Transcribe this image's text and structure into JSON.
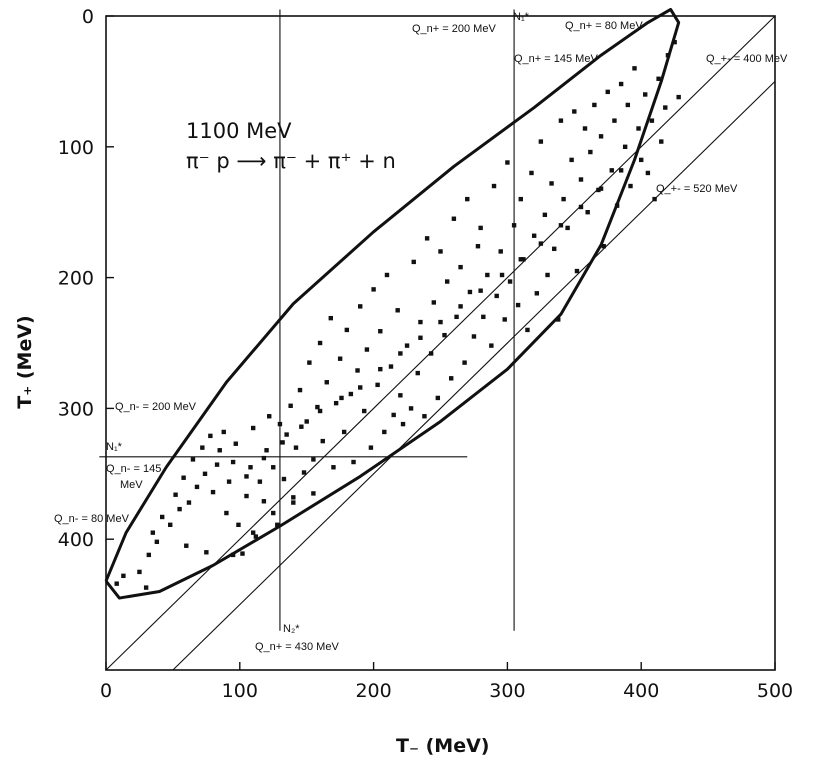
{
  "chart_data": {
    "type": "scatter",
    "title": "",
    "xlabel": "T₋ (MeV)",
    "ylabel": "T₊ (MeV)",
    "xlim": [
      0,
      500
    ],
    "ylim": [
      0,
      500
    ],
    "y_axis_inverted": true,
    "x_ticks": [
      "0",
      "100",
      "200",
      "300",
      "400",
      "500"
    ],
    "y_ticks": [
      "0",
      "100",
      "200",
      "300",
      "400"
    ],
    "inset_text": {
      "energy": "1100 MeV",
      "reaction": "π⁻ p ⟶ π⁻ + π⁺ + n"
    },
    "annotations": [
      {
        "id": "top_a",
        "text": "Q_n+ = 200 MeV"
      },
      {
        "id": "top_b",
        "text": "N₁*"
      },
      {
        "id": "top_c",
        "text": "Q_n+ = 80 MeV"
      },
      {
        "id": "top_d",
        "text": "Q_n+ = 145 MeV"
      },
      {
        "id": "diag_a",
        "text": "Q_+- = 400 MeV"
      },
      {
        "id": "diag_b",
        "text": "Q_+- = 520 MeV"
      },
      {
        "id": "left_a",
        "text": "Q_n- = 200 MeV"
      },
      {
        "id": "left_b",
        "text": "N₁*"
      },
      {
        "id": "left_c",
        "text": "Q_n- = 145"
      },
      {
        "id": "left_d",
        "text": "MeV"
      },
      {
        "id": "left_e",
        "text": "Q_n- = 80 MeV"
      },
      {
        "id": "bot_a",
        "text": "N₂*"
      },
      {
        "id": "bot_b",
        "text": "Q_n+ = 430 MeV"
      }
    ],
    "lines": {
      "diagonal_offsets": [
        0,
        50
      ],
      "vertical_T_minus": [
        130,
        305
      ],
      "horizontal_T_plus": [
        337
      ],
      "ellipse_boundary": [
        [
          0,
          432
        ],
        [
          10,
          445
        ],
        [
          40,
          440
        ],
        [
          80,
          420
        ],
        [
          130,
          390
        ],
        [
          190,
          352
        ],
        [
          250,
          310
        ],
        [
          300,
          270
        ],
        [
          340,
          228
        ],
        [
          370,
          175
        ],
        [
          395,
          110
        ],
        [
          415,
          50
        ],
        [
          428,
          5
        ],
        [
          422,
          -5
        ],
        [
          405,
          5
        ],
        [
          370,
          30
        ],
        [
          320,
          70
        ],
        [
          260,
          115
        ],
        [
          200,
          165
        ],
        [
          140,
          220
        ],
        [
          90,
          280
        ],
        [
          45,
          345
        ],
        [
          15,
          395
        ],
        [
          0,
          432
        ]
      ]
    },
    "series": [
      {
        "points": [
          [
            8,
            434
          ],
          [
            13,
            428
          ],
          [
            25,
            425
          ],
          [
            30,
            437
          ],
          [
            32,
            412
          ],
          [
            35,
            395
          ],
          [
            38,
            402
          ],
          [
            42,
            383
          ],
          [
            48,
            389
          ],
          [
            52,
            366
          ],
          [
            55,
            377
          ],
          [
            58,
            353
          ],
          [
            62,
            372
          ],
          [
            65,
            339
          ],
          [
            68,
            360
          ],
          [
            72,
            330
          ],
          [
            74,
            350
          ],
          [
            78,
            321
          ],
          [
            80,
            364
          ],
          [
            83,
            343
          ],
          [
            85,
            332
          ],
          [
            88,
            318
          ],
          [
            90,
            380
          ],
          [
            92,
            356
          ],
          [
            95,
            341
          ],
          [
            97,
            327
          ],
          [
            99,
            389
          ],
          [
            102,
            411
          ],
          [
            105,
            367
          ],
          [
            108,
            345
          ],
          [
            110,
            315
          ],
          [
            112,
            398
          ],
          [
            115,
            356
          ],
          [
            118,
            371
          ],
          [
            120,
            332
          ],
          [
            122,
            306
          ],
          [
            125,
            345
          ],
          [
            128,
            389
          ],
          [
            130,
            312
          ],
          [
            133,
            354
          ],
          [
            135,
            320
          ],
          [
            138,
            298
          ],
          [
            140,
            368
          ],
          [
            142,
            330
          ],
          [
            145,
            286
          ],
          [
            148,
            349
          ],
          [
            150,
            310
          ],
          [
            152,
            265
          ],
          [
            155,
            339
          ],
          [
            158,
            299
          ],
          [
            160,
            250
          ],
          [
            162,
            325
          ],
          [
            165,
            280
          ],
          [
            168,
            231
          ],
          [
            170,
            345
          ],
          [
            172,
            296
          ],
          [
            175,
            262
          ],
          [
            178,
            318
          ],
          [
            180,
            240
          ],
          [
            183,
            289
          ],
          [
            185,
            341
          ],
          [
            188,
            271
          ],
          [
            190,
            222
          ],
          [
            193,
            302
          ],
          [
            195,
            255
          ],
          [
            198,
            330
          ],
          [
            200,
            209
          ],
          [
            203,
            282
          ],
          [
            205,
            241
          ],
          [
            208,
            318
          ],
          [
            210,
            198
          ],
          [
            213,
            268
          ],
          [
            215,
            305
          ],
          [
            218,
            225
          ],
          [
            220,
            290
          ],
          [
            222,
            312
          ],
          [
            225,
            252
          ],
          [
            228,
            300
          ],
          [
            230,
            188
          ],
          [
            233,
            273
          ],
          [
            235,
            234
          ],
          [
            238,
            306
          ],
          [
            240,
            170
          ],
          [
            243,
            258
          ],
          [
            245,
            219
          ],
          [
            248,
            292
          ],
          [
            250,
            180
          ],
          [
            253,
            244
          ],
          [
            255,
            203
          ],
          [
            258,
            277
          ],
          [
            260,
            155
          ],
          [
            262,
            230
          ],
          [
            265,
            192
          ],
          [
            268,
            265
          ],
          [
            270,
            140
          ],
          [
            272,
            211
          ],
          [
            275,
            245
          ],
          [
            278,
            176
          ],
          [
            280,
            162
          ],
          [
            282,
            230
          ],
          [
            285,
            198
          ],
          [
            288,
            252
          ],
          [
            290,
            130
          ],
          [
            292,
            214
          ],
          [
            295,
            180
          ],
          [
            298,
            232
          ],
          [
            300,
            112
          ],
          [
            302,
            203
          ],
          [
            305,
            160
          ],
          [
            308,
            221
          ],
          [
            310,
            140
          ],
          [
            312,
            186
          ],
          [
            315,
            240
          ],
          [
            318,
            120
          ],
          [
            320,
            168
          ],
          [
            322,
            212
          ],
          [
            325,
            96
          ],
          [
            328,
            152
          ],
          [
            330,
            198
          ],
          [
            333,
            128
          ],
          [
            335,
            178
          ],
          [
            338,
            232
          ],
          [
            340,
            80
          ],
          [
            342,
            140
          ],
          [
            345,
            162
          ],
          [
            348,
            110
          ],
          [
            350,
            73
          ],
          [
            352,
            195
          ],
          [
            355,
            125
          ],
          [
            358,
            86
          ],
          [
            360,
            150
          ],
          [
            362,
            104
          ],
          [
            365,
            68
          ],
          [
            368,
            133
          ],
          [
            370,
            92
          ],
          [
            372,
            176
          ],
          [
            375,
            58
          ],
          [
            378,
            118
          ],
          [
            380,
            80
          ],
          [
            382,
            145
          ],
          [
            385,
            52
          ],
          [
            388,
            100
          ],
          [
            390,
            68
          ],
          [
            392,
            130
          ],
          [
            395,
            40
          ],
          [
            398,
            86
          ],
          [
            400,
            110
          ],
          [
            403,
            60
          ],
          [
            405,
            120
          ],
          [
            408,
            80
          ],
          [
            410,
            140
          ],
          [
            413,
            48
          ],
          [
            415,
            96
          ],
          [
            418,
            70
          ],
          [
            420,
            30
          ],
          [
            425,
            20
          ],
          [
            428,
            62
          ],
          [
            60,
            405
          ],
          [
            75,
            410
          ],
          [
            95,
            412
          ],
          [
            110,
            395
          ],
          [
            125,
            380
          ],
          [
            140,
            372
          ],
          [
            155,
            365
          ],
          [
            105,
            352
          ],
          [
            118,
            338
          ],
          [
            132,
            326
          ],
          [
            146,
            314
          ],
          [
            160,
            302
          ],
          [
            176,
            292
          ],
          [
            190,
            284
          ],
          [
            205,
            270
          ],
          [
            220,
            258
          ],
          [
            235,
            246
          ],
          [
            250,
            234
          ],
          [
            265,
            222
          ],
          [
            280,
            210
          ],
          [
            296,
            198
          ],
          [
            310,
            186
          ],
          [
            325,
            174
          ],
          [
            340,
            160
          ],
          [
            355,
            146
          ],
          [
            370,
            132
          ],
          [
            385,
            118
          ]
        ]
      }
    ]
  }
}
